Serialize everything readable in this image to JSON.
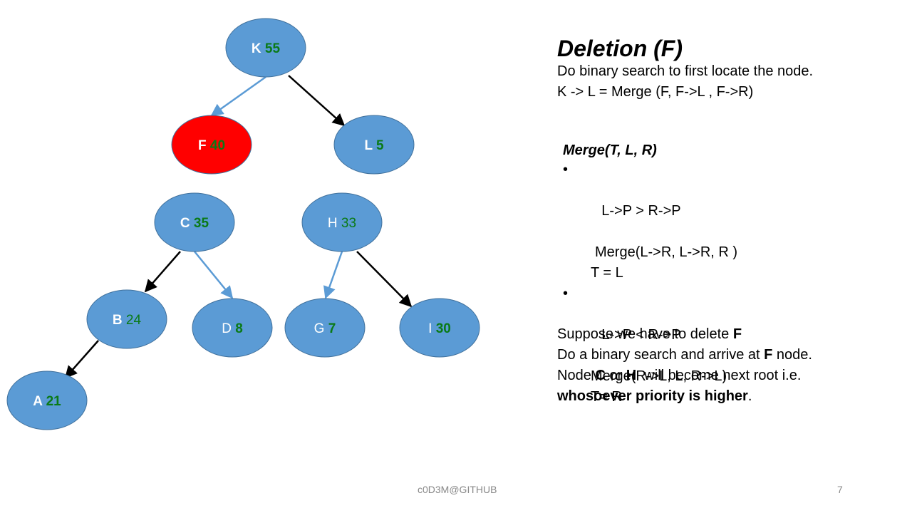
{
  "tree": {
    "nodes": [
      {
        "id": "K",
        "letter": "K",
        "priority": "55",
        "fill": "#5b9bd5",
        "letter_bold": true,
        "prio_bold": true
      },
      {
        "id": "F",
        "letter": "F",
        "priority": "40",
        "fill": "#ff0000",
        "letter_bold": true,
        "prio_bold": true
      },
      {
        "id": "L",
        "letter": "L",
        "priority": "5",
        "fill": "#5b9bd5",
        "letter_bold": true,
        "prio_bold": true
      },
      {
        "id": "C",
        "letter": "C",
        "priority": "35",
        "fill": "#5b9bd5",
        "letter_bold": true,
        "prio_bold": true
      },
      {
        "id": "H",
        "letter": "H",
        "priority": "33",
        "fill": "#5b9bd5",
        "letter_bold": false,
        "prio_bold": false
      },
      {
        "id": "B",
        "letter": "B",
        "priority": "24",
        "fill": "#5b9bd5",
        "letter_bold": true,
        "prio_bold": false
      },
      {
        "id": "D",
        "letter": "D",
        "priority": "8",
        "fill": "#5b9bd5",
        "letter_bold": false,
        "prio_bold": true
      },
      {
        "id": "G",
        "letter": "G",
        "priority": "7",
        "fill": "#5b9bd5",
        "letter_bold": false,
        "prio_bold": true
      },
      {
        "id": "I",
        "letter": "I",
        "priority": "30",
        "fill": "#5b9bd5",
        "letter_bold": false,
        "prio_bold": true
      },
      {
        "id": "A",
        "letter": "A",
        "priority": "21",
        "fill": "#5b9bd5",
        "letter_bold": true,
        "prio_bold": true
      }
    ],
    "edges": [
      {
        "from": "K",
        "to": "F",
        "color": "#5b9bd5"
      },
      {
        "from": "K",
        "to": "L",
        "color": "#000000"
      },
      {
        "from": "C",
        "to": "B",
        "color": "#000000"
      },
      {
        "from": "C",
        "to": "D",
        "color": "#5b9bd5"
      },
      {
        "from": "H",
        "to": "G",
        "color": "#5b9bd5"
      },
      {
        "from": "H",
        "to": "I",
        "color": "#000000"
      },
      {
        "from": "B",
        "to": "A",
        "color": "#000000"
      }
    ]
  },
  "panel": {
    "heading": "Deletion (F)",
    "line1": "Do binary search to first locate the node.",
    "line2": "K -> L = Merge (F, F->L , F->R)"
  },
  "merge": {
    "title": "Merge(T, L, R)",
    "bullet": "•",
    "case1": "L->P > R->P",
    "case1_call": "Merge(L->R, L->R, R )",
    "case1_assign": "T = L",
    "case2": "L->P < R->P",
    "case2_call": "Merge(R->L, L, R->L)",
    "case2_assign": "T= R"
  },
  "suppose": {
    "l1_a": "Suppose we have to delete ",
    "l1_b": "F",
    "l2_a": "Do a binary search and arrive at ",
    "l2_b": "F",
    "l2_c": " node.",
    "l3_a": "Node ",
    "l3_b": "C",
    "l3_c": " or ",
    "l3_d": "H",
    "l3_e": "  will become next root i.e.",
    "l4": "whosoever priority is higher",
    "l4_end": "."
  },
  "footer": {
    "center": "c0D3M@GITHUB",
    "page": "7"
  }
}
